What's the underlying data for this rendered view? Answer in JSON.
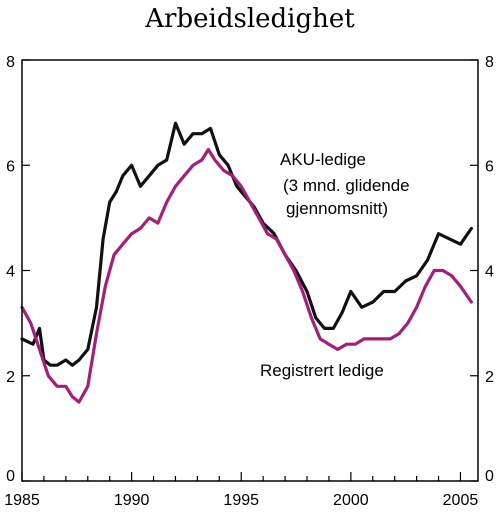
{
  "chart_data": {
    "type": "line",
    "title": "Arbeidsledighet",
    "xlim": [
      1985,
      2005.8
    ],
    "ylim": [
      0,
      8
    ],
    "x_ticks": [
      "1985",
      "1990",
      "1995",
      "2000",
      "2005"
    ],
    "y_ticks": [
      "0",
      "2",
      "4",
      "6",
      "8"
    ],
    "grid": false,
    "annotations": {
      "aku_line1": "AKU-ledige",
      "aku_line2": "(3 mnd. glidende",
      "aku_line3": "gjennomsnitt)",
      "registrert": "Registrert ledige"
    },
    "series": [
      {
        "name": "AKU-ledige",
        "color": "#111111",
        "x": [
          1985.0,
          1985.5,
          1985.8,
          1986.0,
          1986.3,
          1986.6,
          1987.0,
          1987.3,
          1987.6,
          1988.0,
          1988.4,
          1988.7,
          1989.0,
          1989.3,
          1989.6,
          1990.0,
          1990.4,
          1990.8,
          1991.2,
          1991.6,
          1992.0,
          1992.4,
          1992.8,
          1993.2,
          1993.6,
          1994.0,
          1994.4,
          1994.8,
          1995.2,
          1995.6,
          1996.0,
          1996.5,
          1997.0,
          1997.5,
          1998.0,
          1998.4,
          1998.8,
          1999.2,
          1999.6,
          2000.0,
          2000.5,
          2001.0,
          2001.5,
          2002.0,
          2002.5,
          2003.0,
          2003.5,
          2004.0,
          2004.5,
          2005.0,
          2005.5
        ],
        "values": [
          2.7,
          2.6,
          2.9,
          2.3,
          2.2,
          2.2,
          2.3,
          2.2,
          2.3,
          2.5,
          3.3,
          4.6,
          5.3,
          5.5,
          5.8,
          6.0,
          5.6,
          5.8,
          6.0,
          6.1,
          6.8,
          6.4,
          6.6,
          6.6,
          6.7,
          6.2,
          6.0,
          5.6,
          5.4,
          5.2,
          4.9,
          4.7,
          4.3,
          4.0,
          3.6,
          3.1,
          2.9,
          2.9,
          3.2,
          3.6,
          3.3,
          3.4,
          3.6,
          3.6,
          3.8,
          3.9,
          4.2,
          4.7,
          4.6,
          4.5,
          4.8
        ]
      },
      {
        "name": "Registrert ledige",
        "color": "#a0207a",
        "x": [
          1985.0,
          1985.4,
          1985.8,
          1986.2,
          1986.6,
          1987.0,
          1987.3,
          1987.6,
          1988.0,
          1988.4,
          1988.8,
          1989.2,
          1989.6,
          1990.0,
          1990.4,
          1990.8,
          1991.2,
          1991.6,
          1992.0,
          1992.4,
          1992.8,
          1993.2,
          1993.5,
          1993.8,
          1994.2,
          1994.6,
          1995.0,
          1995.4,
          1995.8,
          1996.2,
          1996.6,
          1997.0,
          1997.4,
          1997.8,
          1998.2,
          1998.6,
          1999.0,
          1999.4,
          1999.8,
          2000.2,
          2000.6,
          2001.0,
          2001.4,
          2001.8,
          2002.2,
          2002.6,
          2003.0,
          2003.4,
          2003.8,
          2004.2,
          2004.6,
          2005.0,
          2005.5
        ],
        "values": [
          3.3,
          3.0,
          2.5,
          2.0,
          1.8,
          1.8,
          1.6,
          1.5,
          1.8,
          2.8,
          3.7,
          4.3,
          4.5,
          4.7,
          4.8,
          5.0,
          4.9,
          5.3,
          5.6,
          5.8,
          6.0,
          6.1,
          6.3,
          6.1,
          5.9,
          5.8,
          5.6,
          5.3,
          5.0,
          4.7,
          4.6,
          4.3,
          4.0,
          3.6,
          3.1,
          2.7,
          2.6,
          2.5,
          2.6,
          2.6,
          2.7,
          2.7,
          2.7,
          2.7,
          2.8,
          3.0,
          3.3,
          3.7,
          4.0,
          4.0,
          3.9,
          3.7,
          3.4
        ]
      }
    ]
  }
}
